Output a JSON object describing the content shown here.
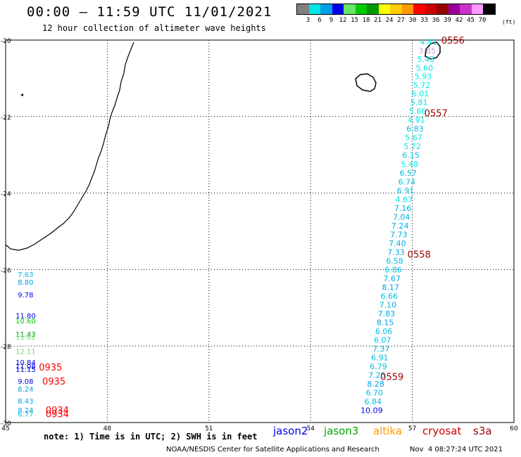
{
  "header": {
    "title": "00:00 – 11:59 UTC 11/01/2021",
    "subtitle": "12 hour collection of altimeter wave heights"
  },
  "legend": {
    "colors": [
      "#808080",
      "#00e6e6",
      "#00a0e6",
      "#0000e6",
      "#66e666",
      "#00cc00",
      "#009900",
      "#ffff00",
      "#ffcc00",
      "#ff9900",
      "#ff0000",
      "#cc0000",
      "#990000",
      "#990099",
      "#cc33cc",
      "#ff99ff",
      "#000000"
    ],
    "labels": [
      "3",
      "6",
      "9",
      "12",
      "15",
      "18",
      "21",
      "24",
      "27",
      "30",
      "33",
      "36",
      "39",
      "42",
      "45",
      "70"
    ],
    "unit": "(ft)"
  },
  "axes": {
    "lon_labels": [
      "45",
      "48",
      "51",
      "54",
      "57",
      "60"
    ],
    "lat_labels": [
      "-20",
      "-22",
      "-24",
      "-26",
      "-28",
      "-30"
    ]
  },
  "east_track": [
    {
      "lon": 57.48,
      "lat": -20.05,
      "v": "4.41",
      "c": "#00e6e6"
    },
    {
      "lon": 57.44,
      "lat": -20.28,
      "v": "3.85",
      "c": "#c8a0d8"
    },
    {
      "lon": 57.4,
      "lat": -20.5,
      "v": "5.43",
      "c": "#00e6e6"
    },
    {
      "lon": 57.36,
      "lat": -20.73,
      "v": "5.60",
      "c": "#00e6e6"
    },
    {
      "lon": 57.32,
      "lat": -20.95,
      "v": "5.93",
      "c": "#00e6e6"
    },
    {
      "lon": 57.28,
      "lat": -21.18,
      "v": "5.72",
      "c": "#00e6e6"
    },
    {
      "lon": 57.24,
      "lat": -21.4,
      "v": "6.01",
      "c": "#00e6e6"
    },
    {
      "lon": 57.2,
      "lat": -21.63,
      "v": "5.81",
      "c": "#00e6e6"
    },
    {
      "lon": 57.16,
      "lat": -21.86,
      "v": "5.66",
      "c": "#00e6e6"
    },
    {
      "lon": 57.12,
      "lat": -22.09,
      "v": "4.91",
      "c": "#00e6e6"
    },
    {
      "lon": 57.08,
      "lat": -22.32,
      "v": "6.83",
      "c": "#00c0e6"
    },
    {
      "lon": 57.04,
      "lat": -22.55,
      "v": "5.67",
      "c": "#00e6e6"
    },
    {
      "lon": 57.0,
      "lat": -22.78,
      "v": "5.72",
      "c": "#00e6e6"
    },
    {
      "lon": 56.96,
      "lat": -23.01,
      "v": "6.15",
      "c": "#00c0e6"
    },
    {
      "lon": 56.92,
      "lat": -23.24,
      "v": "5.48",
      "c": "#00e6e6"
    },
    {
      "lon": 56.88,
      "lat": -23.47,
      "v": "6.57",
      "c": "#00c0e6"
    },
    {
      "lon": 56.84,
      "lat": -23.7,
      "v": "6.74",
      "c": "#00c0e6"
    },
    {
      "lon": 56.8,
      "lat": -23.93,
      "v": "6.91",
      "c": "#00c0e6"
    },
    {
      "lon": 56.76,
      "lat": -24.16,
      "v": "4.67",
      "c": "#00e6e6"
    },
    {
      "lon": 56.72,
      "lat": -24.39,
      "v": "7.16",
      "c": "#00b0e6"
    },
    {
      "lon": 56.68,
      "lat": -24.62,
      "v": "7.04",
      "c": "#00b0e6"
    },
    {
      "lon": 56.64,
      "lat": -24.85,
      "v": "7.24",
      "c": "#00b0e6"
    },
    {
      "lon": 56.6,
      "lat": -25.08,
      "v": "7.73",
      "c": "#00b0e6"
    },
    {
      "lon": 56.56,
      "lat": -25.31,
      "v": "7.40",
      "c": "#00b0e6"
    },
    {
      "lon": 56.52,
      "lat": -25.54,
      "v": "7.33",
      "c": "#00b0e6"
    },
    {
      "lon": 56.48,
      "lat": -25.77,
      "v": "6.58",
      "c": "#00c0e6"
    },
    {
      "lon": 56.44,
      "lat": -26.0,
      "v": "6.86",
      "c": "#00c0e6"
    },
    {
      "lon": 56.4,
      "lat": -26.23,
      "v": "7.67",
      "c": "#00b0e6"
    },
    {
      "lon": 56.36,
      "lat": -26.46,
      "v": "8.17",
      "c": "#00a0e6"
    },
    {
      "lon": 56.32,
      "lat": -26.69,
      "v": "6.66",
      "c": "#00c0e6"
    },
    {
      "lon": 56.28,
      "lat": -26.92,
      "v": "7.10",
      "c": "#00b0e6"
    },
    {
      "lon": 56.24,
      "lat": -27.15,
      "v": "7.83",
      "c": "#00b0e6"
    },
    {
      "lon": 56.2,
      "lat": -27.38,
      "v": "8.15",
      "c": "#00a0e6"
    },
    {
      "lon": 56.16,
      "lat": -27.61,
      "v": "6.06",
      "c": "#00c0e6"
    },
    {
      "lon": 56.12,
      "lat": -27.84,
      "v": "6.07",
      "c": "#00c0e6"
    },
    {
      "lon": 56.08,
      "lat": -28.07,
      "v": "7.37",
      "c": "#00b0e6"
    },
    {
      "lon": 56.04,
      "lat": -28.3,
      "v": "6.91",
      "c": "#00c0e6"
    },
    {
      "lon": 56.0,
      "lat": -28.53,
      "v": "6.79",
      "c": "#00c0e6"
    },
    {
      "lon": 55.96,
      "lat": -28.76,
      "v": "7.25",
      "c": "#00b0e6"
    },
    {
      "lon": 55.92,
      "lat": -28.99,
      "v": "8.28",
      "c": "#00a0e6"
    },
    {
      "lon": 55.88,
      "lat": -29.22,
      "v": "6.70",
      "c": "#00c0e6"
    },
    {
      "lon": 55.84,
      "lat": -29.45,
      "v": "6.84",
      "c": "#00c0e6"
    },
    {
      "lon": 55.8,
      "lat": -29.68,
      "v": "10.09",
      "c": "#0000e6"
    }
  ],
  "east_times": [
    {
      "lon": 58.2,
      "lat": -20.0,
      "t": "0556",
      "c": "#990000"
    },
    {
      "lon": 57.7,
      "lat": -21.9,
      "t": "0557",
      "c": "#990000"
    },
    {
      "lon": 57.2,
      "lat": -25.6,
      "t": "0558",
      "c": "#990000"
    },
    {
      "lon": 56.4,
      "lat": -28.8,
      "t": "0559",
      "c": "#990000"
    }
  ],
  "west_track": [
    {
      "lon": 45.32,
      "lat": -26.12,
      "v": "7.63",
      "c": "#00b0e6"
    },
    {
      "lon": 45.32,
      "lat": -26.32,
      "v": "8.80",
      "c": "#00a0e6"
    },
    {
      "lon": 45.32,
      "lat": -26.65,
      "v": "9.78",
      "c": "#0000e6"
    },
    {
      "lon": 45.32,
      "lat": -27.2,
      "v": "11.80",
      "c": "#0000e6"
    },
    {
      "lon": 45.32,
      "lat": -27.33,
      "v": "10.60",
      "c": "#00cc00"
    },
    {
      "lon": 45.32,
      "lat": -27.68,
      "v": "11.43",
      "c": "#009900"
    },
    {
      "lon": 45.32,
      "lat": -27.76,
      "v": "11.62",
      "c": "#66e666"
    },
    {
      "lon": 45.32,
      "lat": -28.13,
      "v": "12.11",
      "c": "#66e666"
    },
    {
      "lon": 45.32,
      "lat": -28.42,
      "v": "10.84",
      "c": "#0000e6"
    },
    {
      "lon": 45.32,
      "lat": -28.52,
      "v": "11.08",
      "c": "#0000e6"
    },
    {
      "lon": 45.32,
      "lat": -28.6,
      "v": "11.15",
      "c": "#0000e6"
    },
    {
      "lon": 45.32,
      "lat": -28.92,
      "v": "9.08",
      "c": "#0000e6"
    },
    {
      "lon": 45.32,
      "lat": -29.12,
      "v": "8.24",
      "c": "#00a0e6"
    },
    {
      "lon": 45.32,
      "lat": -29.43,
      "v": "8.43",
      "c": "#00a0e6"
    },
    {
      "lon": 45.32,
      "lat": -29.67,
      "v": "8.24",
      "c": "#00a0e6"
    },
    {
      "lon": 45.32,
      "lat": -29.77,
      "v": "6.77",
      "c": "#00c0e6"
    }
  ],
  "west_times": [
    {
      "lon": 46.2,
      "lat": -28.55,
      "t": "0935",
      "c": "#ff0000"
    },
    {
      "lon": 46.3,
      "lat": -28.92,
      "t": "0935",
      "c": "#ff0000"
    },
    {
      "lon": 46.4,
      "lat": -29.67,
      "t": "0934",
      "c": "#ff0000"
    },
    {
      "lon": 46.4,
      "lat": -29.77,
      "t": "0934",
      "c": "#ff0000"
    }
  ],
  "footer": {
    "note": "note: 1) Time is in UTC; 2) SWH is in feet",
    "credit": "NOAA/NESDIS Center for Satellite Applications and Research",
    "timestamp": "Nov  4 08:27:24 UTC 2021",
    "satellites": [
      {
        "name": "jason2",
        "color": "#0000e6"
      },
      {
        "name": "jason3",
        "color": "#00aa00"
      },
      {
        "name": "altika",
        "color": "#ff9900"
      },
      {
        "name": "cryosat",
        "color": "#cc0000"
      },
      {
        "name": "s3a",
        "color": "#990000"
      }
    ]
  }
}
